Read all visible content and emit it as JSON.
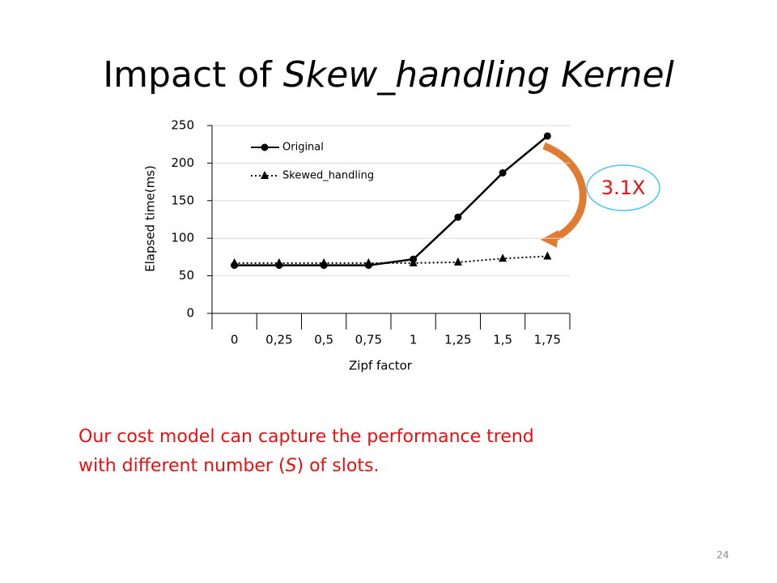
{
  "title": [
    "Impact of",
    "Skew_handling Kernel"
  ],
  "chart_data": {
    "type": "line",
    "categories": [
      "0",
      "0,25",
      "0,5",
      "0,75",
      "1",
      "1,25",
      "1,5",
      "1,75"
    ],
    "series": [
      {
        "name": "Original",
        "color": "#000000",
        "dash": "solid",
        "marker": "circle",
        "values": [
          64,
          64,
          64,
          64,
          72,
          128,
          187,
          236
        ]
      },
      {
        "name": "Skewed_handling",
        "color": "#000000",
        "dash": "dotted",
        "marker": "triangle",
        "values": [
          67,
          67,
          67,
          67,
          67,
          68,
          73,
          76
        ]
      }
    ],
    "ylim": [
      0,
      250
    ],
    "yticks": [
      0,
      50,
      100,
      150,
      200,
      250
    ],
    "grid": true,
    "ylabel": "Elapsed time(ms)",
    "xlabel": "Zipf factor",
    "legend": "top-left",
    "annotation": "3.1X"
  },
  "note": {
    "line1": "Our cost model can capture the performance trend",
    "line2": [
      "with different number (",
      "S",
      ") of slots."
    ]
  },
  "page_number": "24"
}
